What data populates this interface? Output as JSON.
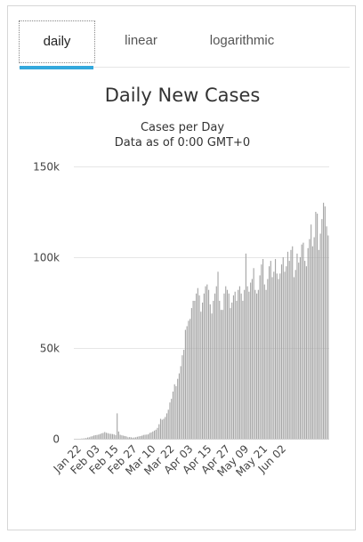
{
  "tabs": [
    {
      "label": "daily",
      "active": true
    },
    {
      "label": "linear",
      "active": false
    },
    {
      "label": "logarithmic",
      "active": false
    }
  ],
  "accent_color": "#33a8dc",
  "bar_color": "#a6a6a6",
  "chart_data": {
    "type": "bar",
    "title": "Daily New Cases",
    "subtitle_lines": [
      "Cases per Day",
      "Data as of 0:00 GMT+0"
    ],
    "xlabel": "",
    "ylabel": "",
    "ylim": [
      0,
      150000
    ],
    "y_ticks": [
      {
        "value": 0,
        "label": "0"
      },
      {
        "value": 50000,
        "label": "50k"
      },
      {
        "value": 100000,
        "label": "100k"
      },
      {
        "value": 150000,
        "label": "150k"
      }
    ],
    "x_tick_labels": [
      "Jan 22",
      "Feb 03",
      "Feb 15",
      "Feb 27",
      "Mar 10",
      "Mar 22",
      "Apr 03",
      "Apr 15",
      "Apr 27",
      "May 09",
      "May 21",
      "Jun 02"
    ],
    "x_tick_interval_days": 12,
    "start_date": "Jan 22",
    "grid": true,
    "values": [
      100,
      150,
      250,
      400,
      700,
      800,
      1200,
      1400,
      1800,
      2000,
      2100,
      2300,
      2600,
      3000,
      3200,
      3700,
      3300,
      3100,
      2800,
      2700,
      2600,
      2400,
      2000,
      14000,
      4000,
      2200,
      1900,
      1700,
      1500,
      1300,
      800,
      900,
      800,
      600,
      700,
      800,
      1100,
      1300,
      1500,
      1700,
      2100,
      2200,
      2300,
      2400,
      3200,
      3500,
      4000,
      4500,
      5000,
      6000,
      8000,
      11000,
      10500,
      11000,
      12000,
      14000,
      16000,
      20000,
      22000,
      26000,
      30000,
      29000,
      33000,
      36000,
      40000,
      46000,
      49000,
      60000,
      62000,
      65000,
      66000,
      72000,
      76000,
      76000,
      80000,
      83000,
      79000,
      70000,
      75000,
      80000,
      84000,
      85000,
      82000,
      74000,
      69000,
      76000,
      80000,
      84000,
      92000,
      76000,
      71000,
      71000,
      80000,
      84000,
      82000,
      80000,
      72000,
      75000,
      79000,
      81000,
      76000,
      82000,
      84000,
      80000,
      76000,
      82000,
      102000,
      84000,
      81000,
      86000,
      88000,
      94000,
      82000,
      80000,
      82000,
      90000,
      96000,
      99000,
      85000,
      82000,
      88000,
      95000,
      98000,
      89000,
      92000,
      99000,
      91000,
      88000,
      91000,
      96000,
      100000,
      92000,
      95000,
      103000,
      98000,
      104000,
      106000,
      89000,
      93000,
      102000,
      97000,
      100000,
      107000,
      108000,
      98000,
      95000,
      105000,
      110000,
      118000,
      106000,
      111000,
      125000,
      124000,
      104000,
      113000,
      121000,
      130000,
      128000,
      117000,
      112000
    ]
  }
}
